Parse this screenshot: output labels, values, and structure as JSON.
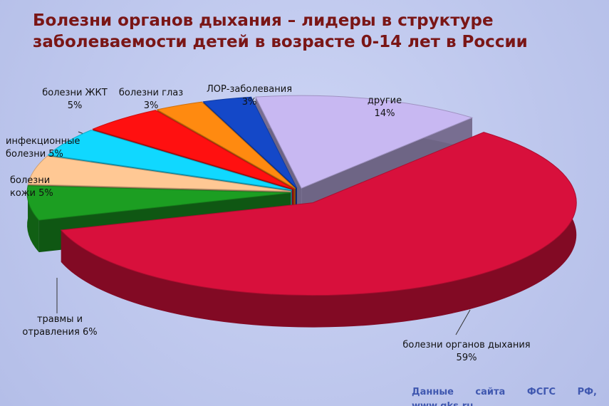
{
  "chart_data": {
    "type": "pie3d",
    "title": "Болезни органов дыхания – лидеры в структуре заболеваемости детей в возрасте 0-14 лет в России",
    "categories": [
      "другие",
      "болезни органов дыхания",
      "травмы и отравления",
      "болезни кожи",
      "инфекционные болезни",
      "болезни ЖКТ",
      "болезни глаз",
      "ЛОР-заболевания"
    ],
    "values": [
      14,
      59,
      6,
      5,
      5,
      5,
      3,
      3
    ],
    "value_labels": [
      "14%",
      "59%",
      "6%",
      "5%",
      "5%",
      "5%",
      "3%",
      "3%"
    ],
    "colors": [
      "#c8b8f2",
      "#d8103c",
      "#1c9e22",
      "#ffc894",
      "#10d8ff",
      "#ff1010",
      "#ff8a10",
      "#1448c8"
    ],
    "source": "Данные сайта ФСГС РФ, www.gks.ru"
  }
}
